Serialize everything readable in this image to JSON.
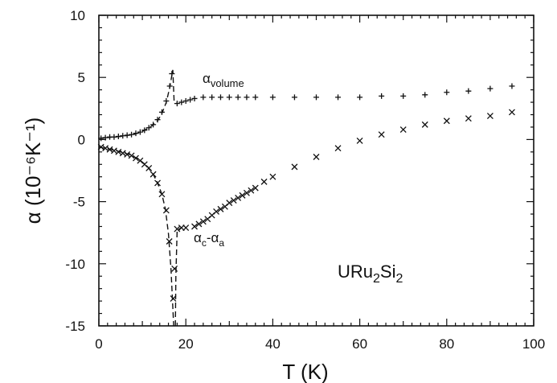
{
  "chart_data": {
    "type": "scatter",
    "title": "",
    "xlabel": "T (K)",
    "ylabel": "α (10⁻⁶K⁻¹)",
    "xlim": [
      0,
      100
    ],
    "ylim": [
      -15,
      10
    ],
    "xticks": [
      0,
      20,
      40,
      60,
      80,
      100
    ],
    "xtick_labels": [
      "0",
      "20",
      "40",
      "60",
      "80",
      "100"
    ],
    "yticks": [
      10,
      5,
      0,
      -5,
      -10,
      -15
    ],
    "ytick_labels": [
      "10",
      "5",
      "0",
      "-5",
      "-10",
      "-15"
    ],
    "grid": false,
    "sample_label": "URu2Si2",
    "series": [
      {
        "name": "α volume",
        "marker": "plus",
        "points": [
          [
            0.5,
            0.1
          ],
          [
            1.5,
            0.15
          ],
          [
            2.5,
            0.2
          ],
          [
            3.5,
            0.2
          ],
          [
            4.5,
            0.25
          ],
          [
            5.5,
            0.3
          ],
          [
            6.5,
            0.35
          ],
          [
            7.5,
            0.4
          ],
          [
            8.5,
            0.5
          ],
          [
            9.5,
            0.6
          ],
          [
            10.5,
            0.75
          ],
          [
            11.5,
            0.95
          ],
          [
            12.5,
            1.2
          ],
          [
            13.5,
            1.6
          ],
          [
            14.5,
            2.2
          ],
          [
            15.5,
            3.1
          ],
          [
            16.3,
            4.3
          ],
          [
            16.8,
            5.3
          ],
          [
            18,
            2.9
          ],
          [
            19,
            3.0
          ],
          [
            20,
            3.1
          ],
          [
            21,
            3.2
          ],
          [
            22,
            3.3
          ],
          [
            24,
            3.4
          ],
          [
            26,
            3.4
          ],
          [
            28,
            3.4
          ],
          [
            30,
            3.4
          ],
          [
            32,
            3.4
          ],
          [
            34,
            3.4
          ],
          [
            36,
            3.4
          ],
          [
            40,
            3.4
          ],
          [
            45,
            3.4
          ],
          [
            50,
            3.4
          ],
          [
            55,
            3.4
          ],
          [
            60,
            3.4
          ],
          [
            65,
            3.5
          ],
          [
            70,
            3.5
          ],
          [
            75,
            3.6
          ],
          [
            80,
            3.8
          ],
          [
            85,
            3.9
          ],
          [
            90,
            4.1
          ],
          [
            95,
            4.3
          ]
        ]
      },
      {
        "name": "α c - α a",
        "marker": "cross",
        "points": [
          [
            0.5,
            -0.6
          ],
          [
            1.5,
            -0.7
          ],
          [
            2.5,
            -0.8
          ],
          [
            3.5,
            -0.9
          ],
          [
            4.5,
            -1.0
          ],
          [
            5.5,
            -1.1
          ],
          [
            6.5,
            -1.2
          ],
          [
            7.5,
            -1.3
          ],
          [
            8.5,
            -1.5
          ],
          [
            9.5,
            -1.7
          ],
          [
            10.5,
            -2.0
          ],
          [
            11.5,
            -2.3
          ],
          [
            12.5,
            -2.8
          ],
          [
            13.5,
            -3.5
          ],
          [
            14.5,
            -4.4
          ],
          [
            15.5,
            -5.7
          ],
          [
            16.2,
            -8.2
          ],
          [
            17.1,
            -12.8
          ],
          [
            17.4,
            -10.4
          ],
          [
            18,
            -7.2
          ],
          [
            19,
            -7.1
          ],
          [
            20,
            -7.1
          ],
          [
            22,
            -7.0
          ],
          [
            23,
            -6.8
          ],
          [
            24,
            -6.6
          ],
          [
            25,
            -6.4
          ],
          [
            26,
            -6.1
          ],
          [
            27,
            -5.8
          ],
          [
            28,
            -5.6
          ],
          [
            29,
            -5.4
          ],
          [
            30,
            -5.1
          ],
          [
            31,
            -4.9
          ],
          [
            32,
            -4.7
          ],
          [
            33,
            -4.5
          ],
          [
            34,
            -4.3
          ],
          [
            35,
            -4.1
          ],
          [
            36,
            -3.9
          ],
          [
            38,
            -3.4
          ],
          [
            40,
            -3.0
          ],
          [
            45,
            -2.2
          ],
          [
            50,
            -1.4
          ],
          [
            55,
            -0.7
          ],
          [
            60,
            -0.1
          ],
          [
            65,
            0.4
          ],
          [
            70,
            0.8
          ],
          [
            75,
            1.2
          ],
          [
            80,
            1.5
          ],
          [
            85,
            1.7
          ],
          [
            90,
            1.9
          ],
          [
            95,
            2.2
          ]
        ]
      }
    ],
    "fit_curves": [
      {
        "name": "α volume",
        "points": [
          [
            0,
            0.1
          ],
          [
            5,
            0.25
          ],
          [
            8,
            0.4
          ],
          [
            10,
            0.65
          ],
          [
            12,
            1.05
          ],
          [
            13.5,
            1.5
          ],
          [
            14.5,
            2.1
          ],
          [
            15.5,
            3.0
          ],
          [
            16.3,
            4.2
          ],
          [
            17,
            5.6
          ],
          [
            17.3,
            3.1
          ],
          [
            18,
            2.9
          ]
        ]
      },
      {
        "name": "α c - α a",
        "points": [
          [
            0,
            -0.6
          ],
          [
            4,
            -0.9
          ],
          [
            7,
            -1.2
          ],
          [
            9,
            -1.55
          ],
          [
            11,
            -2.1
          ],
          [
            12.5,
            -2.8
          ],
          [
            13.5,
            -3.5
          ],
          [
            14.5,
            -4.4
          ],
          [
            15.3,
            -5.6
          ],
          [
            16,
            -7.6
          ],
          [
            16.6,
            -10.5
          ],
          [
            17,
            -13.5
          ],
          [
            17.2,
            -15
          ]
        ]
      },
      {
        "name": "α c - α a",
        "points": [
          [
            17.6,
            -15
          ],
          [
            17.7,
            -11
          ],
          [
            18,
            -7.3
          ],
          [
            19,
            -7.1
          ]
        ]
      }
    ]
  }
}
